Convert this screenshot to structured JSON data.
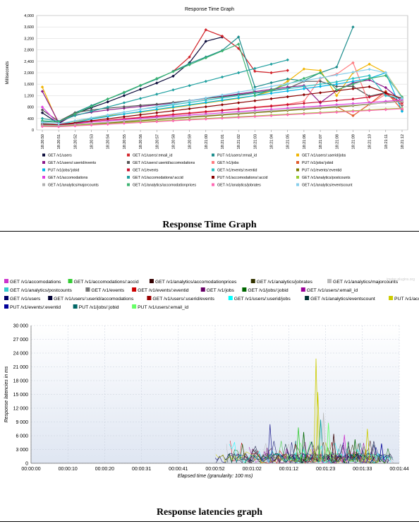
{
  "captions": {
    "chart1": "Response Time Graph",
    "chart2": "Response latencies graph"
  },
  "chart_data": [
    {
      "type": "line",
      "title": "Response Time Graph",
      "xlabel": "",
      "ylabel": "Milliseconds",
      "ylim": [
        0,
        4000
      ],
      "yticks": [
        "0",
        "400",
        "800",
        "1,200",
        "1,600",
        "2,000",
        "2,400",
        "2,800",
        "3,200",
        "3,600",
        "4,000"
      ],
      "grid": true,
      "legend_position": "bottom",
      "categories": [
        "18:20:50",
        "18:20:51",
        "18:20:52",
        "18:20:53",
        "18:20:54",
        "18:20:55",
        "18:20:56",
        "18:20:57",
        "18:20:58",
        "18:20:59",
        "18:21:00",
        "18:21:01",
        "18:21:02",
        "18:21:03",
        "18:21:04",
        "18:21:05",
        "18:21:06",
        "18:21:07",
        "18:21:08",
        "18:21:09",
        "18:21:10",
        "18:21:11",
        "18:21:12"
      ],
      "series": [
        {
          "name": "GET /v1/users",
          "color": "#0b0b3b",
          "values": [
            600,
            220,
            560,
            780,
            980,
            1200,
            1420,
            1640,
            1880,
            2350,
            3100,
            3250,
            null,
            null,
            null,
            null,
            null,
            null,
            null,
            null,
            null,
            null,
            null
          ]
        },
        {
          "name": "GET /v1/users/:email_id",
          "color": "#d2232a",
          "values": [
            null,
            null,
            null,
            null,
            null,
            null,
            null,
            null,
            2050,
            2550,
            3500,
            3280,
            2850,
            2050,
            2000,
            2080,
            null,
            null,
            null,
            null,
            null,
            null,
            null
          ]
        },
        {
          "name": "PUT /v1/users/:email_id",
          "color": "#1a8c8c",
          "values": [
            300,
            270,
            600,
            850,
            1080,
            1300,
            1550,
            1780,
            2050,
            2320,
            2550,
            2780,
            3250,
            1500,
            1650,
            1780,
            1720,
            2000,
            2200,
            3600,
            null,
            null,
            null
          ]
        },
        {
          "name": "GET /v1/users/:userid/jobs",
          "color": "#f0b400",
          "values": [
            1500,
            200,
            300,
            400,
            500,
            560,
            620,
            700,
            780,
            860,
            940,
            1020,
            1100,
            1200,
            1350,
            1700,
            2130,
            2080,
            1200,
            2000,
            2300,
            2000,
            1150
          ]
        },
        {
          "name": "GET /v1/users/:userid/events",
          "color": "#8b1a8b",
          "values": [
            1350,
            260,
            520,
            620,
            700,
            760,
            820,
            880,
            940,
            1020,
            1100,
            1180,
            1260,
            1340,
            1420,
            1500,
            1550,
            950,
            1380,
            1650,
            1750,
            1480,
            1000
          ]
        },
        {
          "name": "GET /v1/users/:userid/accomodations",
          "color": "#555555",
          "values": [
            700,
            300,
            600,
            700,
            760,
            810,
            860,
            900,
            960,
            1030,
            1100,
            1160,
            1230,
            1300,
            1380,
            1450,
            1700,
            1700,
            1520,
            1520,
            1180,
            1300,
            860
          ]
        },
        {
          "name": "GET /v1/jobs",
          "color": "#ff7c80",
          "values": [
            250,
            180,
            250,
            300,
            350,
            400,
            450,
            500,
            550,
            600,
            650,
            700,
            750,
            800,
            850,
            900,
            1000,
            1800,
            1950,
            2350,
            900,
            1250,
            900
          ]
        },
        {
          "name": "PUT /v1/jobs/:jobid",
          "color": "#e05a2a",
          "values": [
            160,
            150,
            180,
            220,
            260,
            300,
            340,
            380,
            420,
            460,
            500,
            540,
            580,
            620,
            660,
            700,
            740,
            780,
            820,
            500,
            900,
            1350,
            700
          ]
        },
        {
          "name": "PUT /v1/jobs/:jobid",
          "color": "#00b4e6",
          "values": [
            200,
            120,
            260,
            380,
            470,
            560,
            640,
            720,
            800,
            880,
            960,
            1040,
            1120,
            1200,
            1280,
            1360,
            1440,
            1520,
            1600,
            1700,
            1800,
            2000,
            650
          ]
        },
        {
          "name": "GET /v1/events",
          "color": "#c8102e",
          "values": [
            180,
            150,
            220,
            280,
            330,
            380,
            430,
            480,
            530,
            580,
            630,
            680,
            730,
            780,
            830,
            880,
            930,
            980,
            1030,
            1080,
            1150,
            1280,
            950
          ]
        },
        {
          "name": "GET /v1/events/:eventid",
          "color": "#2fc1c1",
          "values": [
            220,
            160,
            320,
            420,
            520,
            620,
            720,
            800,
            880,
            960,
            1040,
            1120,
            1200,
            1280,
            1360,
            1440,
            1520,
            1600,
            1680,
            1800,
            1900,
            1200,
            1100
          ]
        },
        {
          "name": "PUT /v1/events/:eventid",
          "color": "#7b7b00",
          "values": [
            150,
            140,
            170,
            200,
            240,
            280,
            320,
            360,
            400,
            440,
            480,
            520,
            560,
            600,
            640,
            680,
            720,
            760,
            800,
            850,
            900,
            960,
            1000
          ]
        },
        {
          "name": "GET /v1/accomodations",
          "color": "#e040e0",
          "values": [
            800,
            200,
            240,
            280,
            320,
            360,
            400,
            440,
            480,
            520,
            560,
            600,
            640,
            680,
            720,
            760,
            800,
            840,
            880,
            920,
            960,
            1000,
            1050
          ]
        },
        {
          "name": "GET /v1/accomodations/:accid",
          "color": "#20a0a0",
          "values": [
            400,
            300,
            500,
            650,
            800,
            950,
            1100,
            1250,
            1400,
            1550,
            1700,
            1850,
            2000,
            2150,
            2300,
            2450,
            null,
            null,
            null,
            null,
            null,
            null,
            null
          ]
        },
        {
          "name": "PUT /v1/accomodations/:accid",
          "color": "#8b0000",
          "values": [
            200,
            180,
            250,
            320,
            390,
            460,
            530,
            600,
            670,
            740,
            810,
            880,
            950,
            1020,
            1090,
            1160,
            1230,
            1300,
            1370,
            1440,
            1510,
            1300,
            1100
          ]
        },
        {
          "name": "GET /v1/analytics/postcounts",
          "color": "#9acd32",
          "values": [
            140,
            130,
            160,
            190,
            220,
            250,
            280,
            310,
            340,
            370,
            400,
            430,
            460,
            490,
            520,
            550,
            580,
            610,
            640,
            670,
            700,
            730,
            760
          ]
        },
        {
          "name": "GET /v1/analytics/majorcounts",
          "color": "#b0b0b0",
          "values": [
            170,
            150,
            190,
            230,
            270,
            310,
            350,
            390,
            430,
            470,
            510,
            550,
            590,
            630,
            670,
            710,
            750,
            790,
            830,
            870,
            910,
            950,
            990
          ]
        },
        {
          "name": "GET /v1/analytics/accomodationprices",
          "color": "#3cb371",
          "values": [
            320,
            280,
            560,
            820,
            1080,
            1320,
            1560,
            1800,
            2040,
            2280,
            2520,
            2760,
            3000,
            1200,
            1400,
            1600,
            1800,
            2000,
            1400,
            1600,
            1800,
            1900,
            1150
          ]
        },
        {
          "name": "GET /v1/analytics/jobrates",
          "color": "#ff69b4",
          "values": [
            120,
            110,
            140,
            170,
            200,
            230,
            260,
            290,
            320,
            350,
            380,
            410,
            440,
            470,
            500,
            530,
            560,
            590,
            620,
            650,
            680,
            710,
            740
          ]
        },
        {
          "name": "GET /v1/analytics/eventscount",
          "color": "#87ceeb",
          "values": [
            260,
            220,
            320,
            420,
            520,
            620,
            720,
            820,
            920,
            1020,
            1120,
            1220,
            1320,
            1420,
            1520,
            1620,
            1720,
            1820,
            1920,
            2020,
            2120,
            2000,
            1100
          ]
        }
      ]
    },
    {
      "type": "line",
      "title": "",
      "xlabel": "Elapsed time (granularity: 100 ms)",
      "ylabel": "Response latencies in ms",
      "ylim": [
        0,
        30000
      ],
      "yticks": [
        "0",
        "3 000",
        "6 000",
        "9 000",
        "12 000",
        "15 000",
        "18 000",
        "21 000",
        "24 000",
        "27 000",
        "30 000"
      ],
      "xticks": [
        "00:00:00",
        "00:00:10",
        "00:00:20",
        "00:00:31",
        "00:00:41",
        "00:00:52",
        "00:01:02",
        "00:01:12",
        "00:01:23",
        "00:01:33",
        "00:01:44"
      ],
      "xlim_seconds": [
        0,
        104
      ],
      "grid": true,
      "legend_position": "top",
      "watermark": "jmeter-plugins.org",
      "series": [
        {
          "name": "GET /v1/accomodations",
          "color": "#cc33cc"
        },
        {
          "name": "GET /v1/accomodations/:accid",
          "color": "#33cc33"
        },
        {
          "name": "GET /v1/analytics/accomodationprices",
          "color": "#330000"
        },
        {
          "name": "GET /v1/analytics/jobrates",
          "color": "#333300"
        },
        {
          "name": "GET /v1/analytics/majorcounts",
          "color": "#bbbbbb"
        },
        {
          "name": "GET /v1/analytics/postcounts",
          "color": "#33cccc"
        },
        {
          "name": "GET /v1/events",
          "color": "#777777"
        },
        {
          "name": "GET /v1/events/:eventid",
          "color": "#cc0000"
        },
        {
          "name": "GET /v1/jobs",
          "color": "#660066"
        },
        {
          "name": "GET /v1/jobs/:jobid",
          "color": "#006600"
        },
        {
          "name": "GET /v1/users/:email_id",
          "color": "#990099"
        },
        {
          "name": "GET /v1/users",
          "color": "#000066"
        },
        {
          "name": "GET /v1/users/:userid/accomodations",
          "color": "#000033"
        },
        {
          "name": "GET /v1/users/:userid/events",
          "color": "#990000"
        },
        {
          "name": "GET /v1/users/:userid/jobs",
          "color": "#00ffff"
        },
        {
          "name": "GET /v1/analytics/eventscount",
          "color": "#003333"
        },
        {
          "name": "PUT /v1/accomodations/:accid",
          "color": "#cccc00"
        },
        {
          "name": "PUT /v1/events/:eventid",
          "color": "#000099"
        },
        {
          "name": "PUT /v1/jobs/:jobid",
          "color": "#006666"
        },
        {
          "name": "PUT /v1/users/:email_id",
          "color": "#66ff66"
        }
      ],
      "peaks": [
        {
          "t": 67.5,
          "v": 8500,
          "color": "#333399"
        },
        {
          "t": 75.5,
          "v": 7800,
          "color": "#33cc33"
        },
        {
          "t": 77.0,
          "v": 6800,
          "color": "#006600"
        },
        {
          "t": 80.5,
          "v": 22800,
          "color": "#cccc00"
        },
        {
          "t": 81.0,
          "v": 15500,
          "color": "#cccc00"
        },
        {
          "t": 81.8,
          "v": 9500,
          "color": "#009999"
        },
        {
          "t": 82.6,
          "v": 11000,
          "color": "#bbbbbb"
        },
        {
          "t": 84.0,
          "v": 8800,
          "color": "#66ff66"
        },
        {
          "t": 85.5,
          "v": 6400,
          "color": "#330000"
        },
        {
          "t": 88.5,
          "v": 6200,
          "color": "#cc33cc"
        },
        {
          "t": 91.5,
          "v": 5200,
          "color": "#006600"
        },
        {
          "t": 95.0,
          "v": 7500,
          "color": "#cccc00"
        },
        {
          "t": 99.0,
          "v": 4300,
          "color": "#000099"
        }
      ]
    }
  ]
}
